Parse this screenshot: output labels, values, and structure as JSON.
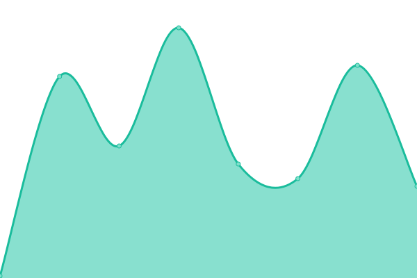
{
  "chart_data": {
    "type": "area",
    "title": "",
    "xlabel": "",
    "ylabel": "",
    "x": [
      0,
      1,
      2,
      3,
      4,
      5,
      6,
      7
    ],
    "values": [
      3,
      290,
      190,
      360,
      164,
      143,
      306,
      132
    ],
    "ylim": [
      0,
      400
    ],
    "grid": false,
    "legend": "none",
    "curve": "smooth",
    "colors": {
      "line": "#1abc9c",
      "fill": "#88e0cf",
      "point": "#7fe0cb"
    }
  }
}
